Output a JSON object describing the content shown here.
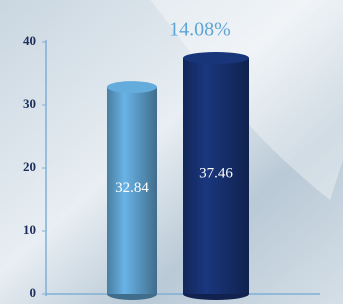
{
  "chart_data": {
    "type": "cylinder-bar",
    "annotation": "14.08%",
    "categories": [
      null,
      null
    ],
    "values": [
      32.84,
      37.46
    ],
    "colors": [
      "#5b9cc8",
      "#17306e"
    ],
    "ylim": [
      0,
      40
    ],
    "yticks": [
      0,
      10,
      20,
      30,
      40
    ],
    "grid": false
  }
}
